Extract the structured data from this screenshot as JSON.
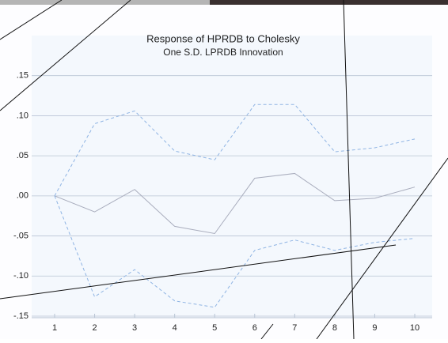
{
  "chart_data": {
    "type": "line",
    "title": "Response of HPRDB to Cholesky",
    "subtitle": "One S.D. LPRDB Innovation",
    "categories": [
      "1",
      "2",
      "3",
      "4",
      "5",
      "6",
      "7",
      "8",
      "9",
      "10"
    ],
    "series": [
      {
        "color": "#a9adbd",
        "dash": false,
        "values": [
          0,
          -0.02,
          0.008,
          -0.038,
          -0.047,
          0.022,
          0.028,
          -0.006,
          -0.003,
          0.011
        ]
      },
      {
        "color": "#8fb4e3",
        "dash": true,
        "values": [
          0,
          0.09,
          0.106,
          0.056,
          0.045,
          0.114,
          0.114,
          0.055,
          0.06,
          0.071
        ]
      },
      {
        "color": "#8fb4e3",
        "dash": true,
        "values": [
          0,
          -0.126,
          -0.092,
          -0.131,
          -0.139,
          -0.068,
          -0.055,
          -0.068,
          -0.058,
          -0.053
        ]
      }
    ],
    "ylim": [
      -0.152,
      0.2
    ],
    "yticks": [
      {
        "value": 0.15,
        "label": ".15"
      },
      {
        "value": 0.1,
        "label": ".10"
      },
      {
        "value": 0.05,
        "label": ".05"
      },
      {
        "value": 0,
        "label": ".00"
      },
      {
        "value": -0.05,
        "label": "-.05"
      },
      {
        "value": -0.1,
        "label": "-.10"
      },
      {
        "value": -0.15,
        "label": "-.15"
      }
    ],
    "grid": true
  }
}
